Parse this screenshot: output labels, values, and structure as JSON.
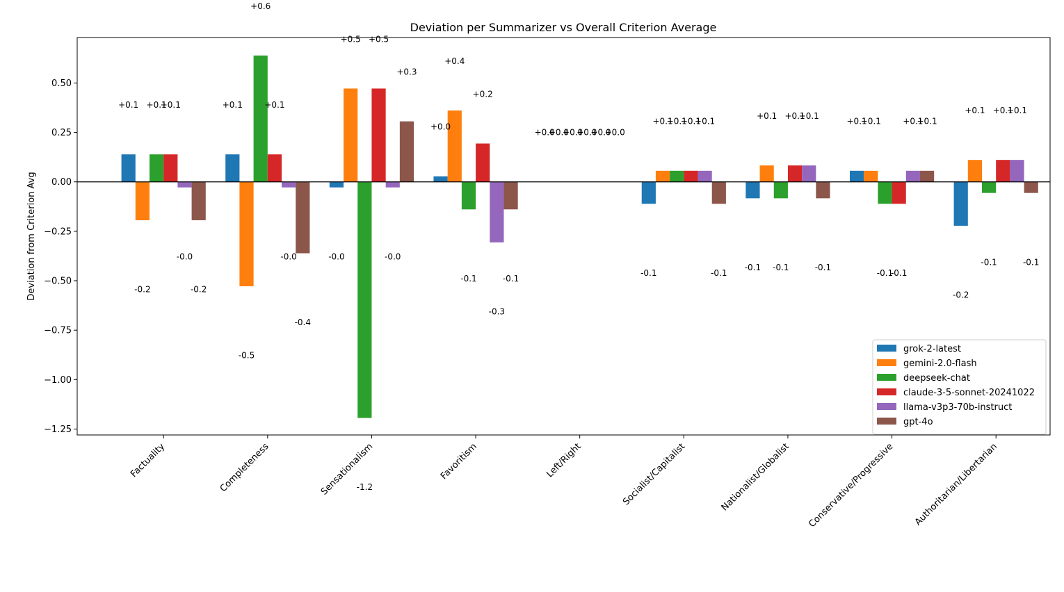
{
  "chart_data": {
    "type": "bar",
    "title": "Deviation per Summarizer vs Overall Criterion Average",
    "xlabel": "",
    "ylabel": "Deviation from Criterion Avg",
    "ylim": [
      -1.28,
      0.73
    ],
    "yticks": [
      0.5,
      0.25,
      0.0,
      -0.25,
      -0.5,
      -0.75,
      -1.0,
      -1.25
    ],
    "ytick_labels": [
      "0.50",
      "0.25",
      "0.00",
      "−0.25",
      "−0.50",
      "−0.75",
      "−1.00",
      "−1.25"
    ],
    "grid": false,
    "legend_position": "lower-right",
    "categories": [
      "Factuality",
      "Completeness",
      "Sensationalism",
      "Favoritism",
      "Left/Right",
      "Socialist/Capitalist",
      "Nationalist/Globalist",
      "Conservative/Progressive",
      "Authoritarian/Libertarian"
    ],
    "series": [
      {
        "name": "grok-2-latest",
        "color": "#1f77b4",
        "values": [
          0.139,
          0.139,
          -0.028,
          0.028,
          0.0,
          -0.111,
          -0.083,
          0.056,
          -0.222
        ],
        "labels": [
          "+0.1",
          "+0.1",
          "-0.0",
          "+0.0",
          "+0.0",
          "-0.1",
          "-0.1",
          "+0.1",
          "-0.2"
        ]
      },
      {
        "name": "gemini-2.0-flash",
        "color": "#ff7f0e",
        "values": [
          -0.194,
          -0.528,
          0.472,
          0.361,
          0.0,
          0.056,
          0.083,
          0.056,
          0.111
        ],
        "labels": [
          "-0.2",
          "-0.5",
          "+0.5",
          "+0.4",
          "+0.0",
          "+0.1",
          "+0.1",
          "+0.1",
          "+0.1"
        ]
      },
      {
        "name": "deepseek-chat",
        "color": "#2ca02c",
        "values": [
          0.139,
          0.639,
          -1.194,
          -0.139,
          0.0,
          0.056,
          -0.083,
          -0.111,
          -0.056
        ],
        "labels": [
          "+0.1",
          "+0.6",
          "-1.2",
          "-0.1",
          "+0.0",
          "+0.1",
          "-0.1",
          "-0.1",
          "-0.1"
        ]
      },
      {
        "name": "claude-3-5-sonnet-20241022",
        "color": "#d62728",
        "values": [
          0.139,
          0.139,
          0.472,
          0.194,
          0.0,
          0.056,
          0.083,
          -0.111,
          0.111
        ],
        "labels": [
          "+0.1",
          "+0.1",
          "+0.5",
          "+0.2",
          "+0.0",
          "+0.1",
          "+0.1",
          "-0.1",
          "+0.1"
        ]
      },
      {
        "name": "llama-v3p3-70b-instruct",
        "color": "#9467bd",
        "values": [
          -0.028,
          -0.028,
          -0.028,
          -0.306,
          0.0,
          0.056,
          0.083,
          0.056,
          0.111
        ],
        "labels": [
          "-0.0",
          "-0.0",
          "-0.0",
          "-0.3",
          "+0.0",
          "+0.1",
          "+0.1",
          "+0.1",
          "+0.1"
        ]
      },
      {
        "name": "gpt-4o",
        "color": "#8c564b",
        "values": [
          -0.194,
          -0.361,
          0.306,
          -0.139,
          0.0,
          -0.111,
          -0.083,
          0.056,
          -0.056
        ],
        "labels": [
          "-0.2",
          "-0.4",
          "+0.3",
          "-0.1",
          "+0.0",
          "-0.1",
          "-0.1",
          "+0.1",
          "-0.1"
        ]
      }
    ]
  }
}
